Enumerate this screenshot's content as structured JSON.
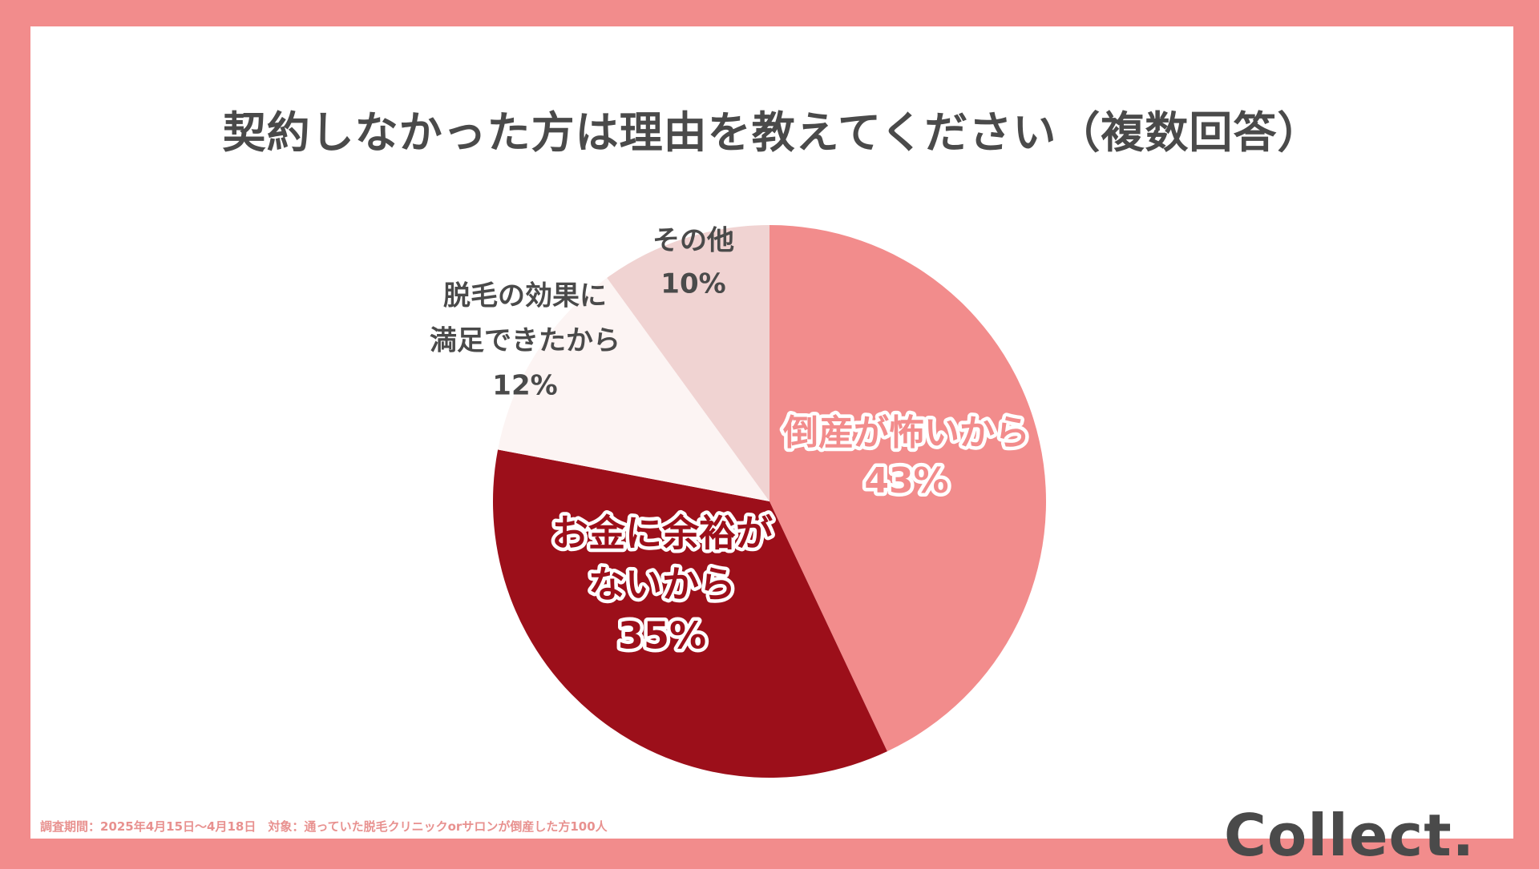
{
  "chart_data": {
    "type": "pie",
    "title": "契約しなかった方は理由を教えてください（複数回答）",
    "slices": [
      {
        "label_lines": [
          "倒産が怖いから"
        ],
        "value_label": "43%",
        "value": 43,
        "color": "#f28c8c",
        "label_style": "outlined",
        "text_color": "#f28c8c"
      },
      {
        "label_lines": [
          "お金に余裕が",
          "ないから"
        ],
        "value_label": "35%",
        "value": 35,
        "color": "#9c0f1a",
        "label_style": "outlined",
        "text_color": "#9c0f1a"
      },
      {
        "label_lines": [
          "脱毛の効果に",
          "満足できたから"
        ],
        "value_label": "12%",
        "value": 12,
        "color": "#fcf4f3",
        "label_style": "plain",
        "text_color": "#4a4a4a"
      },
      {
        "label_lines": [
          "その他"
        ],
        "value_label": "10%",
        "value": 10,
        "color": "#f0d3d2",
        "label_style": "plain",
        "text_color": "#4a4a4a"
      }
    ],
    "start": "top",
    "direction": "clockwise"
  },
  "footnote": "調査期間：2025年4月15日～4月18日　対象：通っていた脱毛クリニックorサロンが倒産した方100人",
  "logo": "Collect.",
  "colors": {
    "frame": "#f28c8c",
    "title": "#4a4a4a",
    "footnote": "#e8918f"
  }
}
